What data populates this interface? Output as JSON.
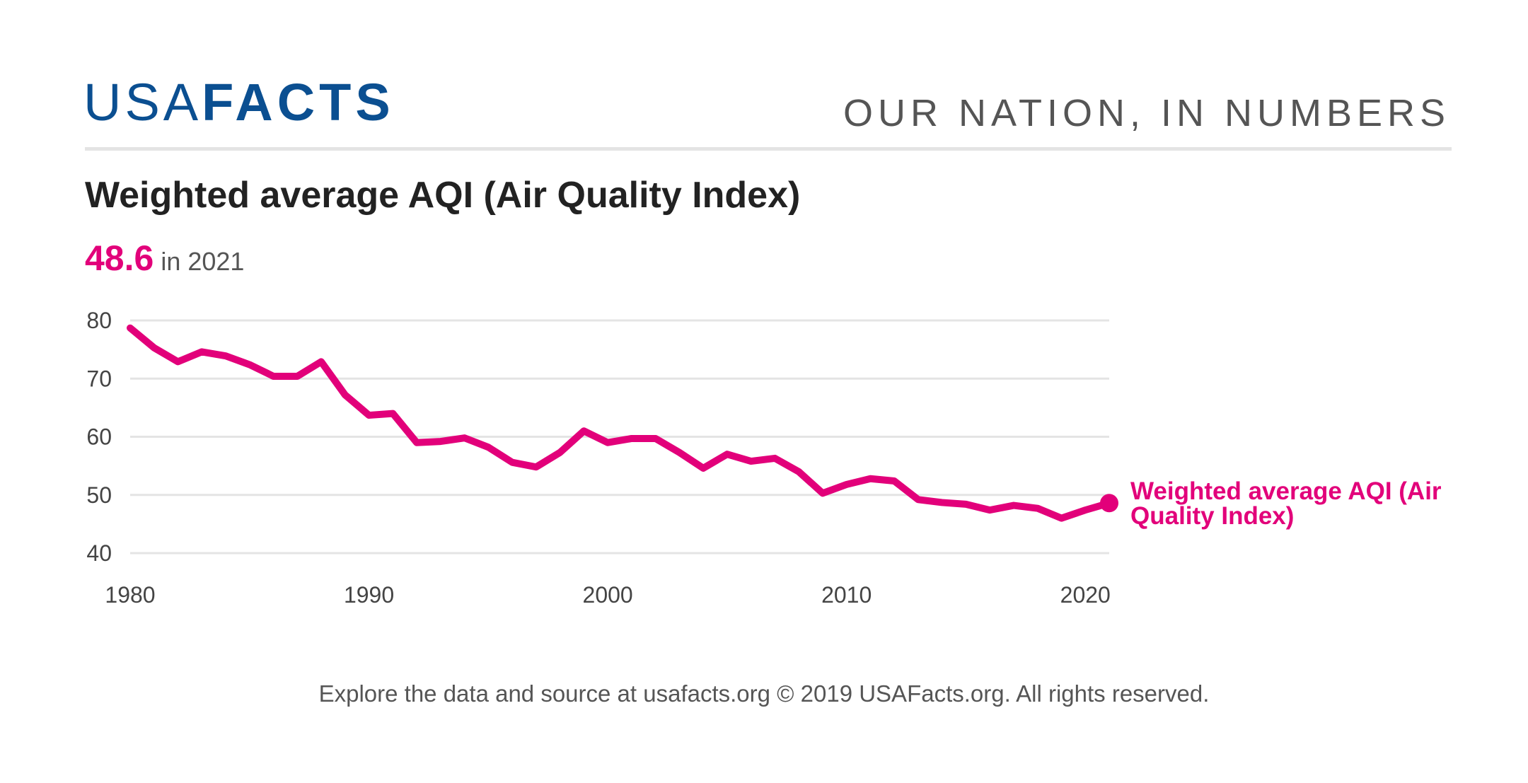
{
  "header": {
    "logo_light": "USA",
    "logo_bold": "FACTS",
    "tagline": "OUR NATION, IN NUMBERS"
  },
  "colors": {
    "brand": "#0b4f91",
    "series": "#e2007a",
    "grid": "#e4e4e4"
  },
  "chart_data": {
    "type": "line",
    "title": "Weighted average AQI (Air Quality Index)",
    "highlight": {
      "value": "48.6",
      "text": "in 2021"
    },
    "x": [
      1980,
      1981,
      1982,
      1983,
      1984,
      1985,
      1986,
      1987,
      1988,
      1989,
      1990,
      1991,
      1992,
      1993,
      1994,
      1995,
      1996,
      1997,
      1998,
      1999,
      2000,
      2001,
      2002,
      2003,
      2004,
      2005,
      2006,
      2007,
      2008,
      2009,
      2010,
      2011,
      2012,
      2013,
      2014,
      2015,
      2016,
      2017,
      2018,
      2019,
      2020,
      2021
    ],
    "series": [
      {
        "name": "Weighted average AQI (Air Quality Index)",
        "name_lines": [
          "Weighted average AQI (Air",
          "Quality Index)"
        ],
        "values": [
          78.7,
          75.3,
          72.9,
          74.6,
          73.9,
          72.4,
          70.4,
          70.4,
          72.9,
          67.2,
          63.7,
          64.0,
          59.0,
          59.2,
          59.8,
          58.2,
          55.6,
          54.8,
          57.3,
          61.0,
          59.0,
          59.7,
          59.7,
          57.3,
          54.6,
          57.0,
          55.8,
          56.3,
          54.0,
          50.3,
          51.8,
          52.8,
          52.4,
          49.2,
          48.7,
          48.4,
          47.4,
          48.2,
          47.7,
          46.0,
          47.4,
          48.6
        ]
      }
    ],
    "xlim": [
      1980,
      2021
    ],
    "ylim": [
      40,
      80
    ],
    "xticks": [
      "1980",
      "1990",
      "2000",
      "2010",
      "2020"
    ],
    "yticks": [
      "80",
      "70",
      "60",
      "50",
      "40"
    ],
    "grid": true,
    "legend": "end-of-line label"
  },
  "footer": "Explore the data and source at usafacts.org © 2019 USAFacts.org. All rights reserved."
}
